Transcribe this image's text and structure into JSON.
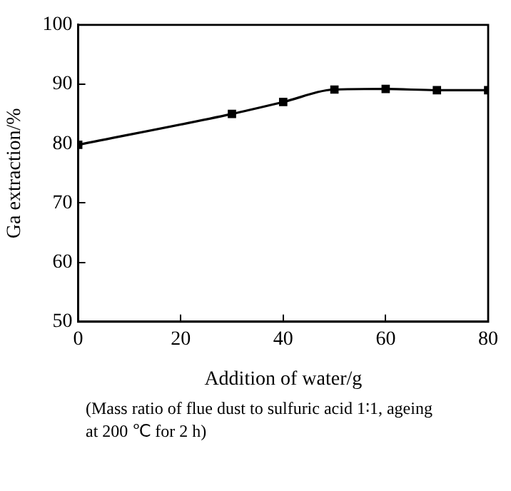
{
  "chart_data": {
    "type": "line",
    "xlabel": "Addition of water/g",
    "ylabel": "Ga extraction/%",
    "x": [
      0,
      30,
      40,
      50,
      60,
      70,
      80
    ],
    "series": [
      {
        "color": "#000000",
        "values": [
          79.8,
          85,
          87,
          89.1,
          89.2,
          89,
          89
        ]
      }
    ],
    "xlim": [
      0,
      80
    ],
    "xticks": [
      0,
      20,
      40,
      60,
      80
    ],
    "ylim": [
      50,
      100
    ],
    "yticks": [
      50,
      60,
      70,
      80,
      90,
      100
    ],
    "grid": false,
    "legend": false,
    "marker": "square",
    "line_style": "solid",
    "annotations": [
      "(Mass ratio of flue dust to sulfuric acid 1∶1, ageing at 200 ℃ for 2 h)"
    ]
  }
}
